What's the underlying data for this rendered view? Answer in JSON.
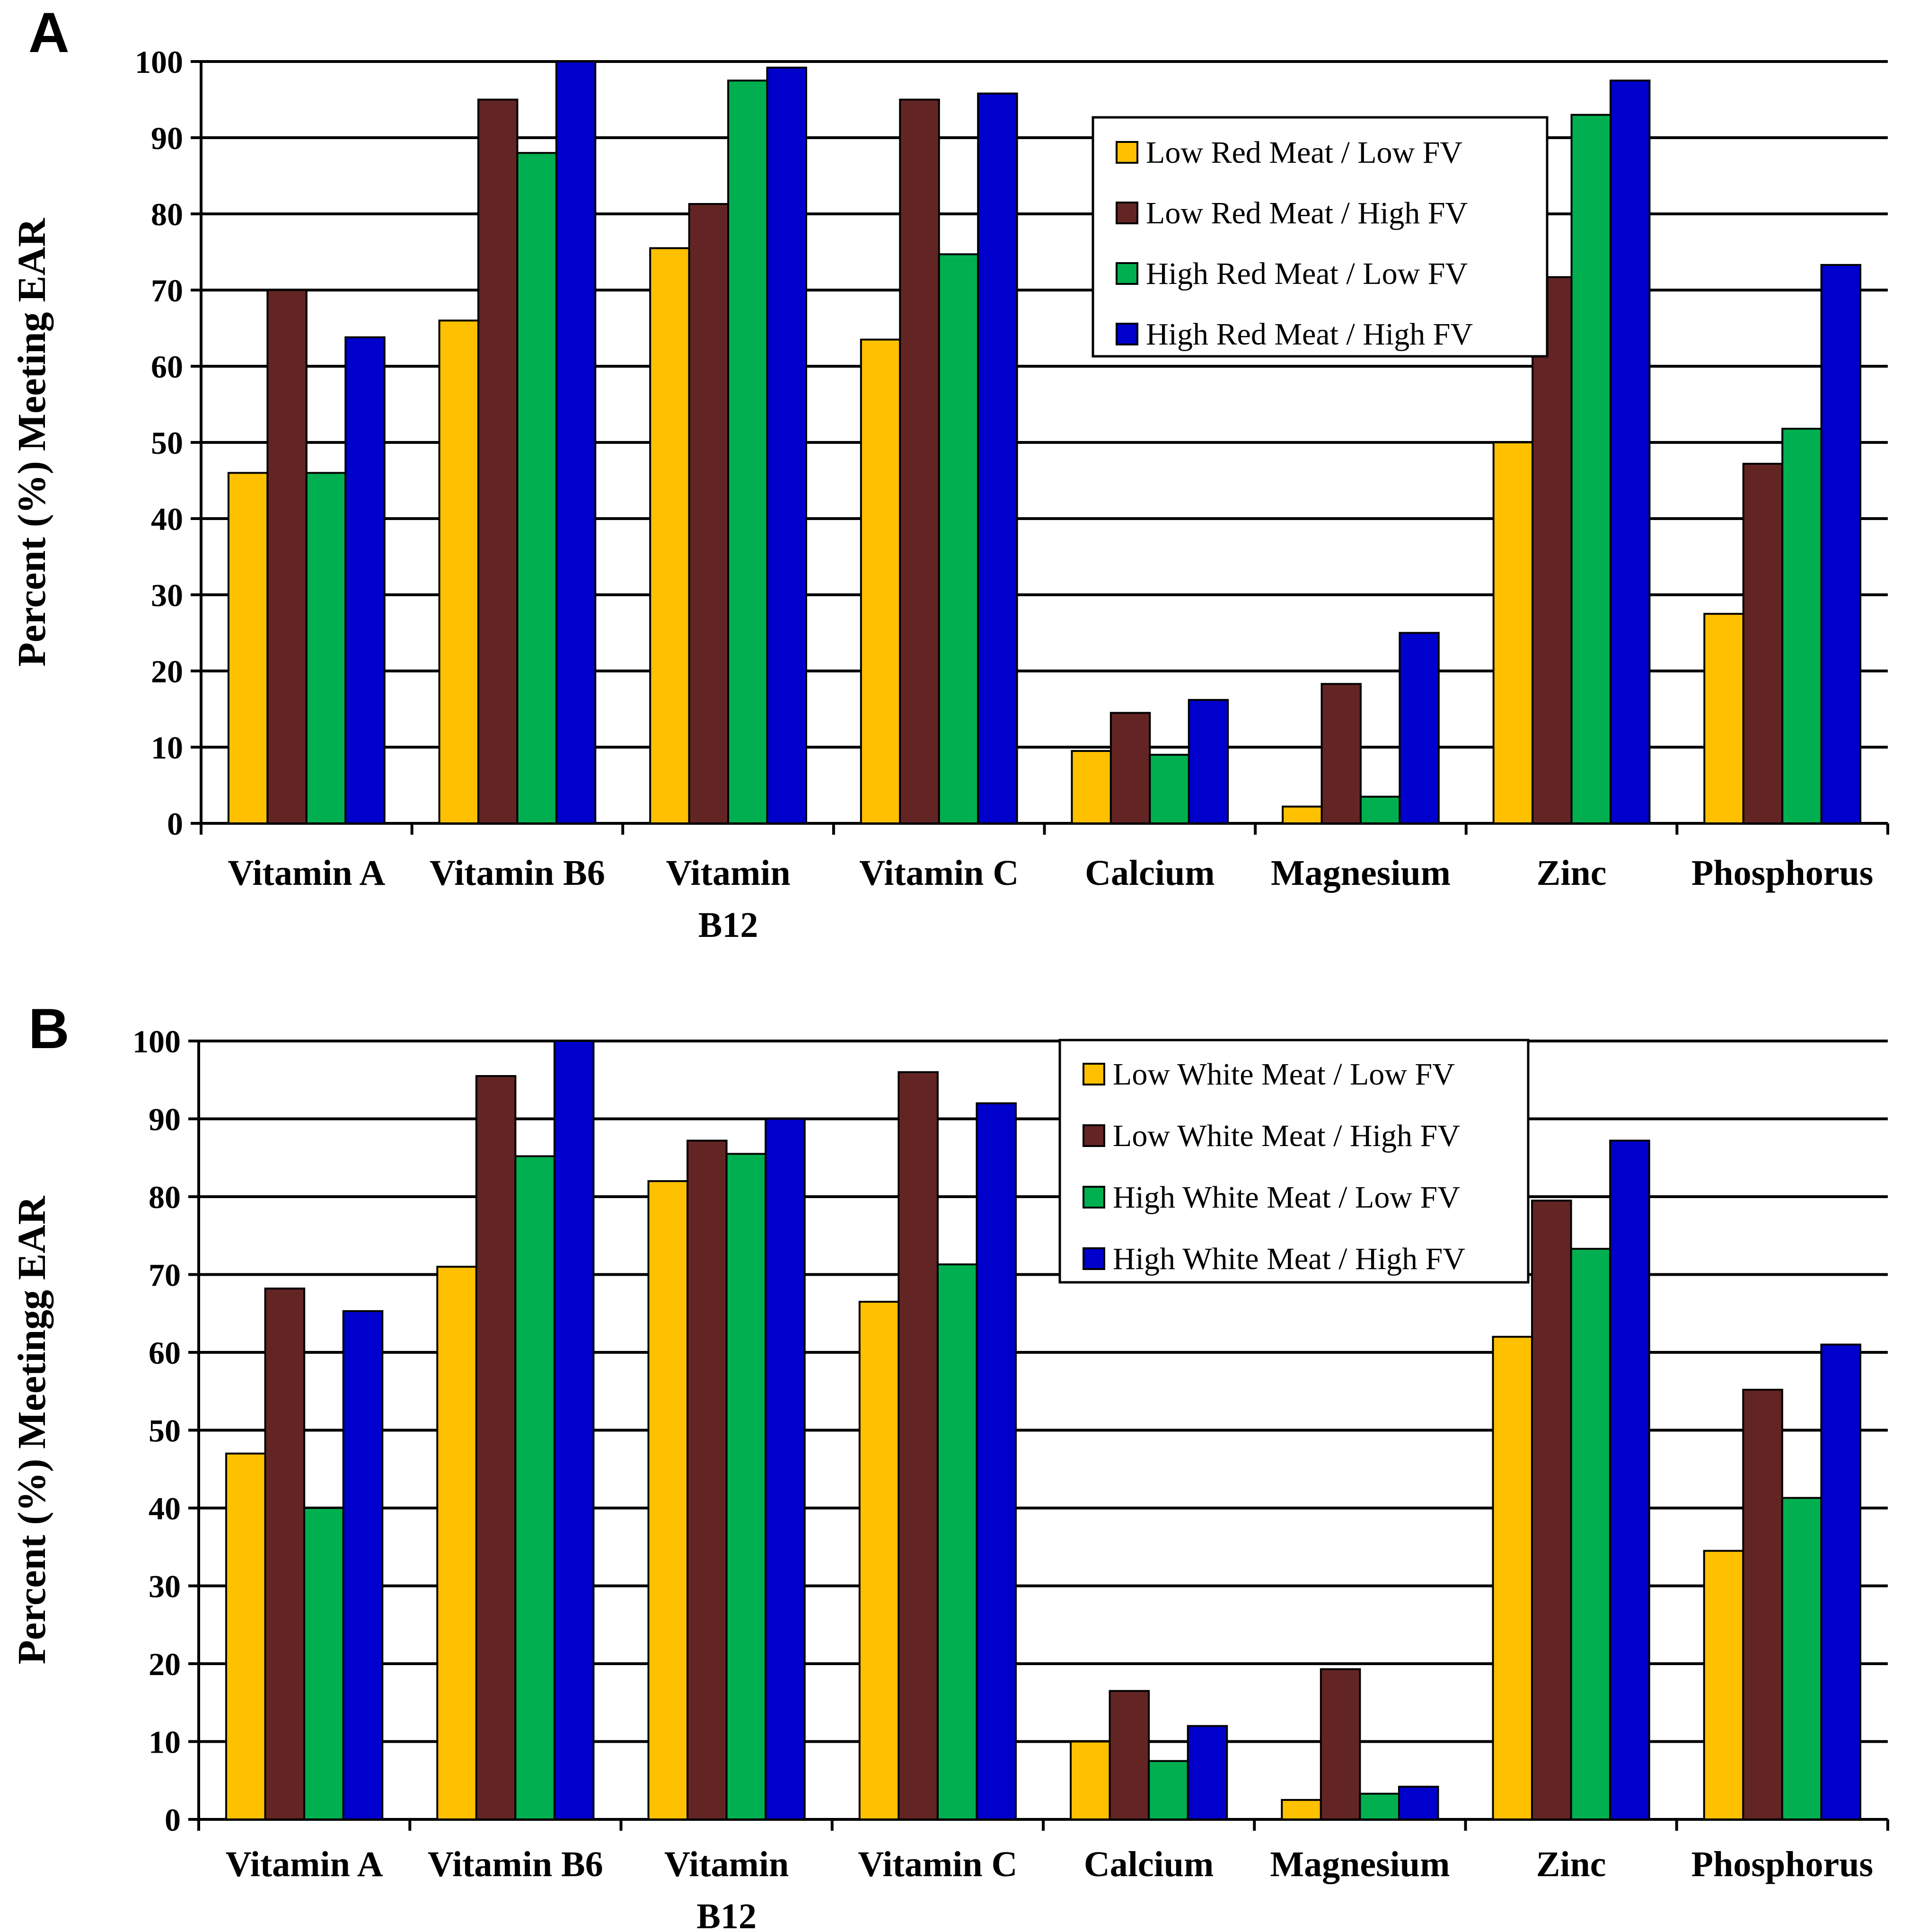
{
  "chart_data": [
    {
      "panel": "A",
      "type": "bar",
      "ylabel": "Percent (%) Meeting EAR",
      "ylim": [
        0,
        100
      ],
      "yticks": [
        "0",
        "10",
        "20",
        "30",
        "40",
        "50",
        "60",
        "70",
        "80",
        "90",
        "100"
      ],
      "categories": [
        [
          "Vitamin A"
        ],
        [
          "Vitamin B6"
        ],
        [
          "Vitamin",
          "B12"
        ],
        [
          "Vitamin C"
        ],
        [
          "Calcium"
        ],
        [
          "Magnesium"
        ],
        [
          "Zinc"
        ],
        [
          "Phosphorus"
        ]
      ],
      "series": [
        {
          "name": "Low Red Meat / Low FV",
          "color": "#FFC000",
          "values": [
            46,
            66,
            75.5,
            63.5,
            9.5,
            2.2,
            50,
            27.5
          ]
        },
        {
          "name": "Low Red Meat / High FV",
          "color": "#632523",
          "values": [
            70,
            95,
            81.3,
            95,
            14.5,
            18.3,
            71.7,
            47.2
          ]
        },
        {
          "name": "High Red Meat / Low FV",
          "color": "#00B050",
          "values": [
            46,
            88,
            97.5,
            74.7,
            9,
            3.5,
            93,
            51.8
          ]
        },
        {
          "name": "High Red Meat / High FV",
          "color": "#0000CC",
          "values": [
            63.8,
            100,
            99.2,
            95.8,
            16.2,
            25,
            97.5,
            73.3
          ]
        }
      ],
      "legend_position": "top-right",
      "grid": true
    },
    {
      "panel": "B",
      "type": "bar",
      "ylabel": "Percent (%) Meetingg EAR",
      "ylim": [
        0,
        100
      ],
      "yticks": [
        "0",
        "10",
        "20",
        "30",
        "40",
        "50",
        "60",
        "70",
        "80",
        "90",
        "100"
      ],
      "categories": [
        [
          "Vitamin A"
        ],
        [
          "Vitamin B6"
        ],
        [
          "Vitamin",
          "B12"
        ],
        [
          "Vitamin C"
        ],
        [
          "Calcium"
        ],
        [
          "Magnesium"
        ],
        [
          "Zinc"
        ],
        [
          "Phosphorus"
        ]
      ],
      "series": [
        {
          "name": "Low White Meat / Low FV",
          "color": "#FFC000",
          "values": [
            47,
            71,
            82,
            66.5,
            10,
            2.5,
            62,
            34.5
          ]
        },
        {
          "name": "Low White Meat / High FV",
          "color": "#632523",
          "values": [
            68.2,
            95.5,
            87.2,
            96,
            16.5,
            19.3,
            79.5,
            55.2
          ]
        },
        {
          "name": "High White Meat / Low FV",
          "color": "#00B050",
          "values": [
            40,
            85.2,
            85.5,
            71.3,
            7.5,
            3.3,
            73.3,
            41.3
          ]
        },
        {
          "name": "High White Meat / High FV",
          "color": "#0000CC",
          "values": [
            65.3,
            100,
            90,
            92,
            12,
            4.2,
            87.2,
            61
          ]
        }
      ],
      "legend_position": "top-right",
      "grid": true
    }
  ]
}
